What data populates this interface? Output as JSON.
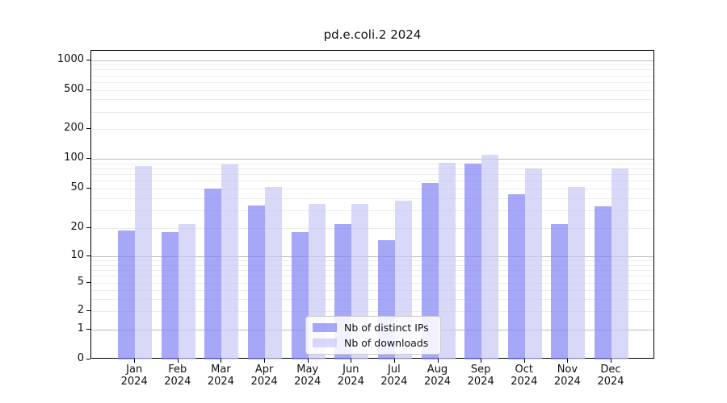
{
  "title": "pd.e.coli.2 2024",
  "chart_data": {
    "type": "bar",
    "title": "pd.e.coli.2 2024",
    "categories": [
      "Jan",
      "Feb",
      "Mar",
      "Apr",
      "May",
      "Jun",
      "Jul",
      "Aug",
      "Sep",
      "Oct",
      "Nov",
      "Dec"
    ],
    "x_year_label": "2024",
    "series": [
      {
        "name": "Nb of distinct IPs",
        "values": [
          19,
          18,
          50,
          34,
          18,
          22,
          15,
          57,
          90,
          44,
          22,
          33
        ]
      },
      {
        "name": "Nb of downloads",
        "values": [
          85,
          22,
          88,
          52,
          35,
          35,
          38,
          92,
          110,
          80,
          52,
          80
        ]
      }
    ],
    "yscale": "symlog",
    "yticks_labeled": [
      0,
      1,
      2,
      5,
      10,
      20,
      50,
      100,
      200,
      500,
      1000
    ],
    "yticks_minor": [
      3,
      4,
      6,
      7,
      8,
      9,
      30,
      40,
      60,
      70,
      80,
      90,
      300,
      400,
      600,
      700,
      800,
      900
    ],
    "ylim": [
      0,
      1250
    ],
    "grid": "horizontal major+minor",
    "legend_position": "inside lower-center"
  },
  "colors": {
    "bar_ips": "rgba(130,130,245,0.7)",
    "bar_downloads": "rgba(199,199,247,0.7)",
    "grid_major": "#bbbbbb",
    "grid_minor": "#ececec",
    "spine": "#000000"
  }
}
